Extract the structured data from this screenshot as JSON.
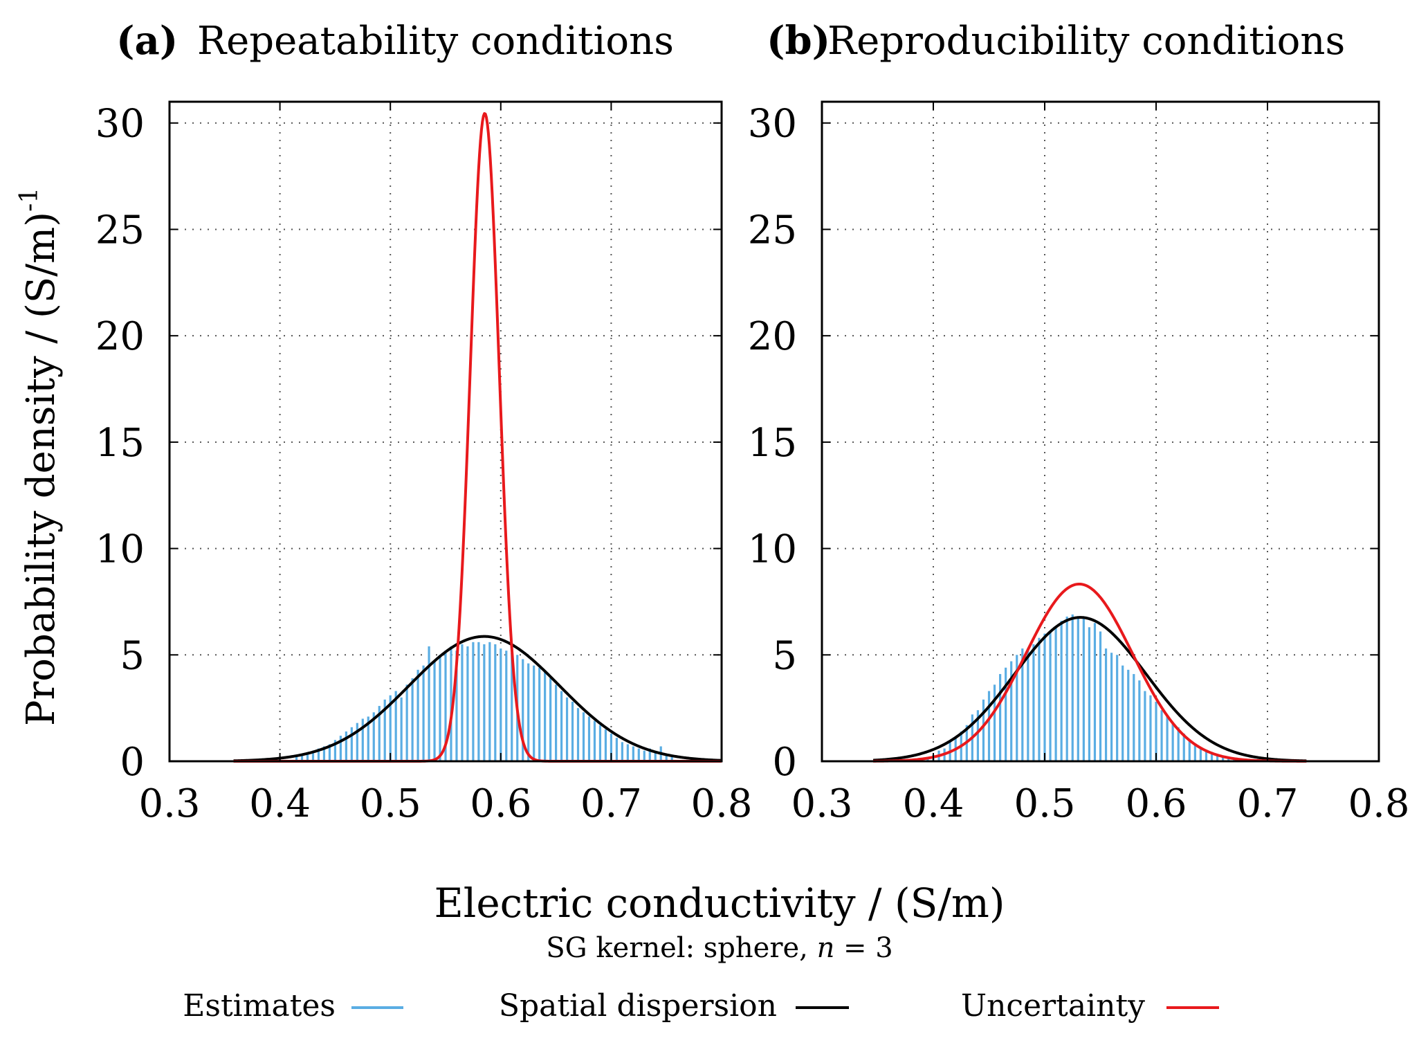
{
  "figure": {
    "xlabel": "Electric conductivity / (S/m)",
    "subtitle_prefix": "SG kernel: sphere, ",
    "subtitle_var": "n",
    "subtitle_suffix": " = 3",
    "ylabel_main": "Probability density / (S/m)",
    "ylabel_sup": "-1",
    "legend": [
      {
        "label": "Estimates",
        "color": "#5aade3"
      },
      {
        "label": "Spatial dispersion",
        "color": "#000000"
      },
      {
        "label": "Uncertainty",
        "color": "#e8191c"
      }
    ]
  },
  "chart_data": [
    {
      "type": "bar",
      "panel_label": "(a)",
      "title": "Repeatability conditions",
      "xlim": [
        0.3,
        0.8
      ],
      "ylim": [
        0,
        31
      ],
      "x_ticks": [
        "0.3",
        "0.4",
        "0.5",
        "0.6",
        "0.7",
        "0.8"
      ],
      "y_ticks": [
        "0",
        "5",
        "10",
        "15",
        "20",
        "25",
        "30"
      ],
      "grid": true,
      "series": [
        {
          "name": "Estimates",
          "kind": "histogram",
          "color": "#5aade3",
          "x": [
            0.415,
            0.42,
            0.425,
            0.43,
            0.435,
            0.44,
            0.445,
            0.45,
            0.455,
            0.46,
            0.465,
            0.47,
            0.475,
            0.48,
            0.485,
            0.49,
            0.495,
            0.5,
            0.505,
            0.51,
            0.515,
            0.52,
            0.525,
            0.53,
            0.535,
            0.54,
            0.545,
            0.55,
            0.555,
            0.56,
            0.565,
            0.57,
            0.575,
            0.58,
            0.585,
            0.59,
            0.595,
            0.6,
            0.605,
            0.61,
            0.615,
            0.62,
            0.625,
            0.63,
            0.635,
            0.64,
            0.645,
            0.65,
            0.655,
            0.66,
            0.665,
            0.67,
            0.675,
            0.68,
            0.685,
            0.69,
            0.695,
            0.7,
            0.705,
            0.71,
            0.715,
            0.72,
            0.725,
            0.73,
            0.735,
            0.74,
            0.745,
            0.75,
            0.755
          ],
          "values": [
            0.3,
            0.35,
            0.4,
            0.5,
            0.6,
            0.7,
            0.8,
            1.0,
            1.2,
            1.4,
            1.6,
            1.8,
            2.0,
            2.1,
            2.3,
            2.6,
            2.9,
            3.1,
            3.3,
            3.0,
            3.6,
            3.9,
            4.3,
            4.5,
            5.4,
            4.7,
            5.0,
            5.2,
            5.4,
            5.2,
            5.5,
            5.4,
            5.6,
            5.6,
            5.5,
            5.6,
            5.5,
            5.3,
            5.2,
            5.1,
            5.0,
            4.8,
            4.6,
            4.5,
            4.4,
            4.2,
            3.9,
            3.6,
            3.3,
            3.0,
            2.8,
            2.5,
            2.3,
            2.1,
            1.9,
            1.7,
            1.5,
            1.3,
            1.1,
            0.9,
            0.8,
            0.7,
            0.6,
            0.5,
            0.6,
            0.4,
            0.7,
            0.3,
            0.2
          ]
        },
        {
          "name": "Spatial dispersion",
          "kind": "normal_pdf",
          "color": "#000000",
          "mean": 0.585,
          "sd": 0.068,
          "range": [
            0.358,
            0.8
          ]
        },
        {
          "name": "Uncertainty",
          "kind": "normal_pdf",
          "color": "#e8191c",
          "mean": 0.5855,
          "sd": 0.0131,
          "range": [
            0.358,
            0.8
          ]
        }
      ]
    },
    {
      "type": "bar",
      "panel_label": "(b)",
      "title": "Reproducibility conditions",
      "xlim": [
        0.3,
        0.8
      ],
      "ylim": [
        0,
        31
      ],
      "x_ticks": [
        "0.3",
        "0.4",
        "0.5",
        "0.6",
        "0.7",
        "0.8"
      ],
      "y_ticks": [
        "0",
        "5",
        "10",
        "15",
        "20",
        "25",
        "30"
      ],
      "grid": true,
      "series": [
        {
          "name": "Estimates",
          "kind": "histogram",
          "color": "#5aade3",
          "x": [
            0.395,
            0.4,
            0.405,
            0.41,
            0.415,
            0.42,
            0.425,
            0.43,
            0.435,
            0.44,
            0.445,
            0.45,
            0.455,
            0.46,
            0.465,
            0.47,
            0.475,
            0.48,
            0.485,
            0.49,
            0.495,
            0.5,
            0.505,
            0.51,
            0.515,
            0.52,
            0.525,
            0.53,
            0.535,
            0.54,
            0.545,
            0.55,
            0.555,
            0.56,
            0.565,
            0.57,
            0.575,
            0.58,
            0.585,
            0.59,
            0.595,
            0.6,
            0.605,
            0.61,
            0.615,
            0.62,
            0.625,
            0.63,
            0.635,
            0.64,
            0.645,
            0.65,
            0.655,
            0.66,
            0.665,
            0.67
          ],
          "values": [
            0.2,
            0.3,
            0.5,
            0.6,
            0.9,
            1.1,
            1.4,
            1.7,
            2.2,
            2.4,
            2.9,
            3.3,
            3.6,
            4.1,
            4.4,
            4.7,
            5.0,
            5.3,
            5.2,
            5.5,
            5.8,
            6.0,
            6.1,
            6.3,
            6.6,
            6.8,
            6.9,
            6.8,
            6.7,
            6.3,
            6.5,
            6.1,
            5.3,
            5.1,
            5.0,
            4.5,
            4.3,
            4.1,
            3.8,
            3.3,
            3.1,
            2.8,
            2.4,
            2.1,
            1.8,
            1.6,
            1.3,
            1.0,
            0.8,
            0.6,
            0.5,
            0.4,
            0.3,
            0.25,
            0.2,
            0.15
          ]
        },
        {
          "name": "Spatial dispersion",
          "kind": "normal_pdf",
          "color": "#000000",
          "mean": 0.532,
          "sd": 0.059,
          "range": [
            0.346,
            0.735
          ]
        },
        {
          "name": "Uncertainty",
          "kind": "normal_pdf",
          "color": "#e8191c",
          "mean": 0.531,
          "sd": 0.0479,
          "range": [
            0.346,
            0.735
          ]
        }
      ]
    }
  ]
}
